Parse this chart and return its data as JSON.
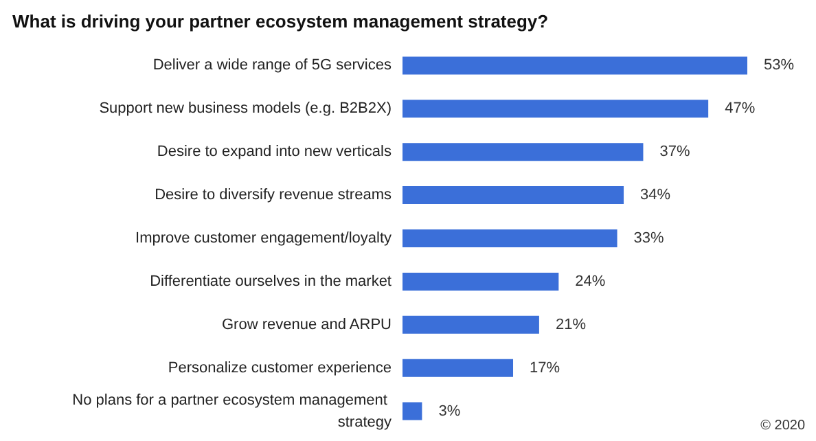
{
  "chart_data": {
    "type": "bar",
    "orientation": "horizontal",
    "title": "What is driving your partner ecosystem management strategy?",
    "categories": [
      "Deliver a wide range of 5G services",
      "Support new business models (e.g. B2B2X)",
      "Desire to expand into new verticals",
      "Desire to diversify revenue streams",
      "Improve customer engagement/loyalty",
      "Differentiate ourselves in the market",
      "Grow revenue and ARPU",
      "Personalize customer experience",
      "No plans for a partner ecosystem management strategy"
    ],
    "values": [
      53,
      47,
      37,
      34,
      33,
      24,
      21,
      17,
      3
    ],
    "value_labels": [
      "53%",
      "47%",
      "37%",
      "34%",
      "33%",
      "24%",
      "21%",
      "17%",
      "3%"
    ],
    "color": "#3b6fd9",
    "annotations": [
      "© 2020"
    ]
  }
}
